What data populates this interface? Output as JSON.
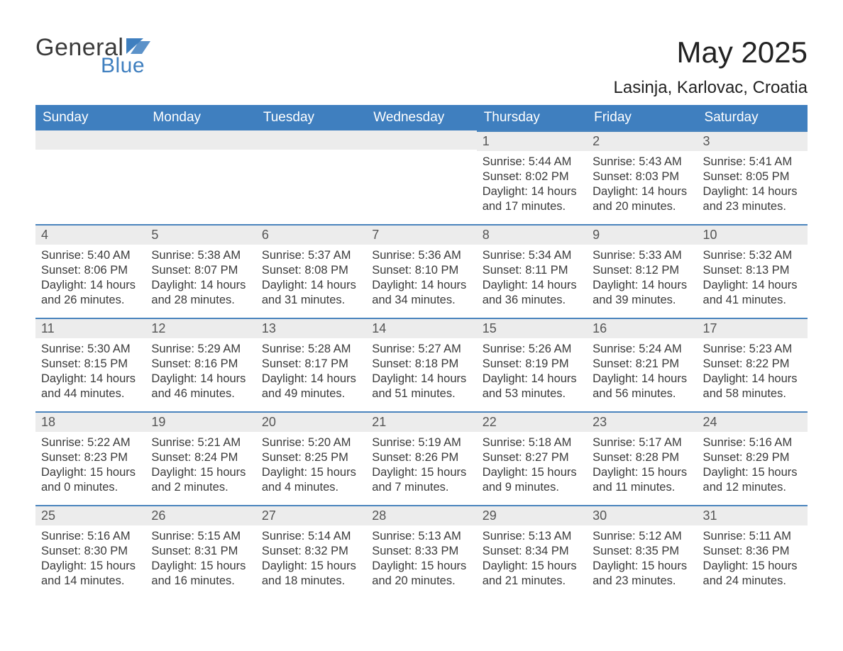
{
  "brand": {
    "name_part1": "General",
    "name_part2": "Blue",
    "flag_color": "#3f7fbf",
    "text_color_general": "#3a3a3a",
    "text_color_blue": "#3f7fbf"
  },
  "header": {
    "month_title": "May 2025",
    "location": "Lasinja, Karlovac, Croatia"
  },
  "colors": {
    "header_row_bg": "#3f7fbf",
    "header_row_text": "#ffffff",
    "day_bar_bg": "#ececec",
    "day_bar_border": "#4a84bd",
    "body_text": "#3a3a3a",
    "page_bg": "#ffffff"
  },
  "fonts": {
    "month_title_size_pt": 32,
    "location_size_pt": 18,
    "header_cell_size_pt": 14,
    "day_number_size_pt": 14,
    "content_size_pt": 12
  },
  "calendar": {
    "weekdays": [
      "Sunday",
      "Monday",
      "Tuesday",
      "Wednesday",
      "Thursday",
      "Friday",
      "Saturday"
    ],
    "leading_blank_cells": 4,
    "days": [
      {
        "n": "1",
        "sunrise": "Sunrise: 5:44 AM",
        "sunset": "Sunset: 8:02 PM",
        "daylight": "Daylight: 14 hours and 17 minutes."
      },
      {
        "n": "2",
        "sunrise": "Sunrise: 5:43 AM",
        "sunset": "Sunset: 8:03 PM",
        "daylight": "Daylight: 14 hours and 20 minutes."
      },
      {
        "n": "3",
        "sunrise": "Sunrise: 5:41 AM",
        "sunset": "Sunset: 8:05 PM",
        "daylight": "Daylight: 14 hours and 23 minutes."
      },
      {
        "n": "4",
        "sunrise": "Sunrise: 5:40 AM",
        "sunset": "Sunset: 8:06 PM",
        "daylight": "Daylight: 14 hours and 26 minutes."
      },
      {
        "n": "5",
        "sunrise": "Sunrise: 5:38 AM",
        "sunset": "Sunset: 8:07 PM",
        "daylight": "Daylight: 14 hours and 28 minutes."
      },
      {
        "n": "6",
        "sunrise": "Sunrise: 5:37 AM",
        "sunset": "Sunset: 8:08 PM",
        "daylight": "Daylight: 14 hours and 31 minutes."
      },
      {
        "n": "7",
        "sunrise": "Sunrise: 5:36 AM",
        "sunset": "Sunset: 8:10 PM",
        "daylight": "Daylight: 14 hours and 34 minutes."
      },
      {
        "n": "8",
        "sunrise": "Sunrise: 5:34 AM",
        "sunset": "Sunset: 8:11 PM",
        "daylight": "Daylight: 14 hours and 36 minutes."
      },
      {
        "n": "9",
        "sunrise": "Sunrise: 5:33 AM",
        "sunset": "Sunset: 8:12 PM",
        "daylight": "Daylight: 14 hours and 39 minutes."
      },
      {
        "n": "10",
        "sunrise": "Sunrise: 5:32 AM",
        "sunset": "Sunset: 8:13 PM",
        "daylight": "Daylight: 14 hours and 41 minutes."
      },
      {
        "n": "11",
        "sunrise": "Sunrise: 5:30 AM",
        "sunset": "Sunset: 8:15 PM",
        "daylight": "Daylight: 14 hours and 44 minutes."
      },
      {
        "n": "12",
        "sunrise": "Sunrise: 5:29 AM",
        "sunset": "Sunset: 8:16 PM",
        "daylight": "Daylight: 14 hours and 46 minutes."
      },
      {
        "n": "13",
        "sunrise": "Sunrise: 5:28 AM",
        "sunset": "Sunset: 8:17 PM",
        "daylight": "Daylight: 14 hours and 49 minutes."
      },
      {
        "n": "14",
        "sunrise": "Sunrise: 5:27 AM",
        "sunset": "Sunset: 8:18 PM",
        "daylight": "Daylight: 14 hours and 51 minutes."
      },
      {
        "n": "15",
        "sunrise": "Sunrise: 5:26 AM",
        "sunset": "Sunset: 8:19 PM",
        "daylight": "Daylight: 14 hours and 53 minutes."
      },
      {
        "n": "16",
        "sunrise": "Sunrise: 5:24 AM",
        "sunset": "Sunset: 8:21 PM",
        "daylight": "Daylight: 14 hours and 56 minutes."
      },
      {
        "n": "17",
        "sunrise": "Sunrise: 5:23 AM",
        "sunset": "Sunset: 8:22 PM",
        "daylight": "Daylight: 14 hours and 58 minutes."
      },
      {
        "n": "18",
        "sunrise": "Sunrise: 5:22 AM",
        "sunset": "Sunset: 8:23 PM",
        "daylight": "Daylight: 15 hours and 0 minutes."
      },
      {
        "n": "19",
        "sunrise": "Sunrise: 5:21 AM",
        "sunset": "Sunset: 8:24 PM",
        "daylight": "Daylight: 15 hours and 2 minutes."
      },
      {
        "n": "20",
        "sunrise": "Sunrise: 5:20 AM",
        "sunset": "Sunset: 8:25 PM",
        "daylight": "Daylight: 15 hours and 4 minutes."
      },
      {
        "n": "21",
        "sunrise": "Sunrise: 5:19 AM",
        "sunset": "Sunset: 8:26 PM",
        "daylight": "Daylight: 15 hours and 7 minutes."
      },
      {
        "n": "22",
        "sunrise": "Sunrise: 5:18 AM",
        "sunset": "Sunset: 8:27 PM",
        "daylight": "Daylight: 15 hours and 9 minutes."
      },
      {
        "n": "23",
        "sunrise": "Sunrise: 5:17 AM",
        "sunset": "Sunset: 8:28 PM",
        "daylight": "Daylight: 15 hours and 11 minutes."
      },
      {
        "n": "24",
        "sunrise": "Sunrise: 5:16 AM",
        "sunset": "Sunset: 8:29 PM",
        "daylight": "Daylight: 15 hours and 12 minutes."
      },
      {
        "n": "25",
        "sunrise": "Sunrise: 5:16 AM",
        "sunset": "Sunset: 8:30 PM",
        "daylight": "Daylight: 15 hours and 14 minutes."
      },
      {
        "n": "26",
        "sunrise": "Sunrise: 5:15 AM",
        "sunset": "Sunset: 8:31 PM",
        "daylight": "Daylight: 15 hours and 16 minutes."
      },
      {
        "n": "27",
        "sunrise": "Sunrise: 5:14 AM",
        "sunset": "Sunset: 8:32 PM",
        "daylight": "Daylight: 15 hours and 18 minutes."
      },
      {
        "n": "28",
        "sunrise": "Sunrise: 5:13 AM",
        "sunset": "Sunset: 8:33 PM",
        "daylight": "Daylight: 15 hours and 20 minutes."
      },
      {
        "n": "29",
        "sunrise": "Sunrise: 5:13 AM",
        "sunset": "Sunset: 8:34 PM",
        "daylight": "Daylight: 15 hours and 21 minutes."
      },
      {
        "n": "30",
        "sunrise": "Sunrise: 5:12 AM",
        "sunset": "Sunset: 8:35 PM",
        "daylight": "Daylight: 15 hours and 23 minutes."
      },
      {
        "n": "31",
        "sunrise": "Sunrise: 5:11 AM",
        "sunset": "Sunset: 8:36 PM",
        "daylight": "Daylight: 15 hours and 24 minutes."
      }
    ]
  }
}
